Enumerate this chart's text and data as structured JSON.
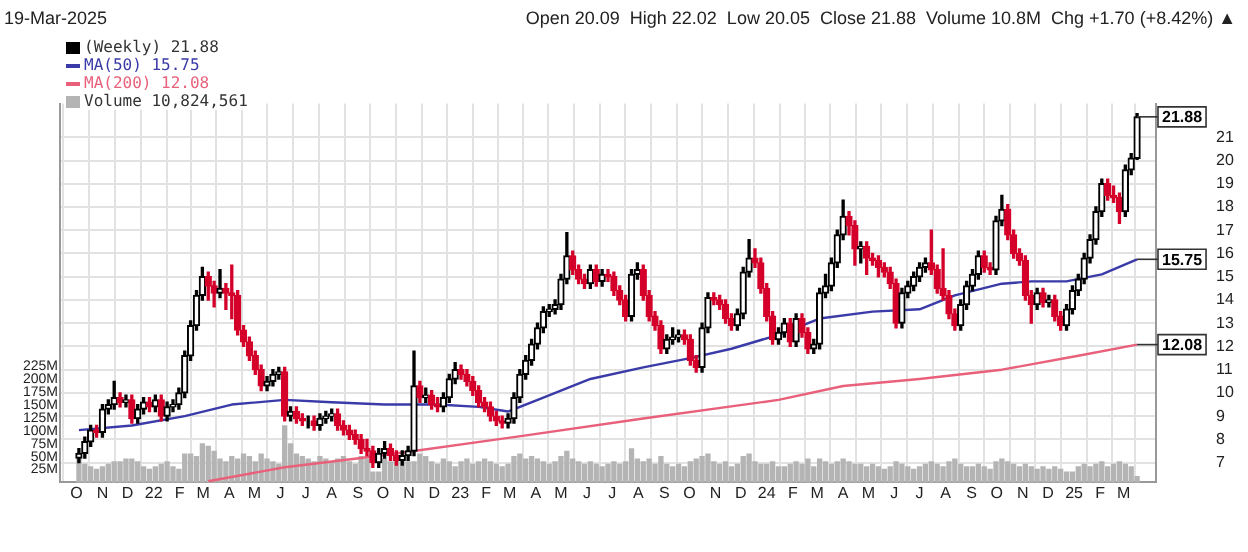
{
  "chart_data": {
    "type": "candlestick",
    "subtitle": "19-Mar-2025",
    "annotations": [
      "Open 20.09  High 22.02  Low 20.05  Close 21.88  Volume 10.8M  Chg +1.70 (+8.42%) ▲",
      {
        "text": "21.88",
        "x": "2025-03-17",
        "y": 21.88
      },
      {
        "text": "15.75",
        "x": "2025-03-17",
        "y": 15.75
      },
      {
        "text": "12.08",
        "x": "2025-03-17",
        "y": 12.08
      }
    ],
    "x": [
      "2021-10-04",
      "2021-10-11",
      "2021-10-18",
      "2021-10-25",
      "2021-11-01",
      "2021-11-08",
      "2021-11-15",
      "2021-11-22",
      "2021-11-29",
      "2021-12-06",
      "2021-12-13",
      "2021-12-20",
      "2021-12-27",
      "2022-01-03",
      "2022-01-10",
      "2022-01-17",
      "2022-01-24",
      "2022-01-31",
      "2022-02-07",
      "2022-02-14",
      "2022-02-21",
      "2022-02-28",
      "2022-03-07",
      "2022-03-14",
      "2022-03-21",
      "2022-03-28",
      "2022-04-04",
      "2022-04-11",
      "2022-04-18",
      "2022-04-25",
      "2022-05-02",
      "2022-05-09",
      "2022-05-16",
      "2022-05-23",
      "2022-05-30",
      "2022-06-06",
      "2022-06-13",
      "2022-06-20",
      "2022-06-27",
      "2022-07-04",
      "2022-07-11",
      "2022-07-18",
      "2022-07-25",
      "2022-08-01",
      "2022-08-08",
      "2022-08-15",
      "2022-08-22",
      "2022-08-29",
      "2022-09-05",
      "2022-09-12",
      "2022-09-19",
      "2022-09-26",
      "2022-10-03",
      "2022-10-10",
      "2022-10-17",
      "2022-10-24",
      "2022-10-31",
      "2022-11-07",
      "2022-11-14",
      "2022-11-21",
      "2022-11-28",
      "2022-12-05",
      "2022-12-12",
      "2022-12-19",
      "2022-12-26",
      "2023-01-02",
      "2023-01-09",
      "2023-01-16",
      "2023-01-23",
      "2023-01-30",
      "2023-02-06",
      "2023-02-13",
      "2023-02-20",
      "2023-02-27",
      "2023-03-06",
      "2023-03-13",
      "2023-03-20",
      "2023-03-27",
      "2023-04-03",
      "2023-04-10",
      "2023-04-17",
      "2023-04-24",
      "2023-05-01",
      "2023-05-08",
      "2023-05-15",
      "2023-05-22",
      "2023-05-29",
      "2023-06-05",
      "2023-06-12",
      "2023-06-19",
      "2023-06-26",
      "2023-07-03",
      "2023-07-10",
      "2023-07-17",
      "2023-07-24",
      "2023-07-31",
      "2023-08-07",
      "2023-08-14",
      "2023-08-21",
      "2023-08-28",
      "2023-09-04",
      "2023-09-11",
      "2023-09-18",
      "2023-09-25",
      "2023-10-02",
      "2023-10-09",
      "2023-10-16",
      "2023-10-23",
      "2023-10-30",
      "2023-11-06",
      "2023-11-13",
      "2023-11-20",
      "2023-11-27",
      "2023-12-04",
      "2023-12-11",
      "2023-12-18",
      "2023-12-25",
      "2024-01-01",
      "2024-01-08",
      "2024-01-15",
      "2024-01-22",
      "2024-01-29",
      "2024-02-05",
      "2024-02-12",
      "2024-02-19",
      "2024-02-26",
      "2024-03-04",
      "2024-03-11",
      "2024-03-18",
      "2024-03-25",
      "2024-04-01",
      "2024-04-08",
      "2024-04-15",
      "2024-04-22",
      "2024-04-29",
      "2024-05-06",
      "2024-05-13",
      "2024-05-20",
      "2024-05-27",
      "2024-06-03",
      "2024-06-10",
      "2024-06-17",
      "2024-06-24",
      "2024-07-01",
      "2024-07-08",
      "2024-07-15",
      "2024-07-22",
      "2024-07-29",
      "2024-08-05",
      "2024-08-12",
      "2024-08-19",
      "2024-08-26",
      "2024-09-02",
      "2024-09-09",
      "2024-09-16",
      "2024-09-23",
      "2024-09-30",
      "2024-10-07",
      "2024-10-14",
      "2024-10-21",
      "2024-10-28",
      "2024-11-04",
      "2024-11-11",
      "2024-11-18",
      "2024-11-25",
      "2024-12-02",
      "2024-12-09",
      "2024-12-16",
      "2024-12-23",
      "2024-12-30",
      "2025-01-06",
      "2025-01-13",
      "2025-01-20",
      "2025-01-27",
      "2025-02-03",
      "2025-02-10",
      "2025-02-17",
      "2025-02-24",
      "2025-03-03",
      "2025-03-10",
      "2025-03-17"
    ],
    "xlim": [
      "2021-09-27",
      "2025-03-24"
    ],
    "xticks": [
      {
        "value": "2021-10",
        "label": "O"
      },
      {
        "value": "2021-11",
        "label": "N"
      },
      {
        "value": "2021-12",
        "label": "D"
      },
      {
        "value": "2022-01",
        "label": "22"
      },
      {
        "value": "2022-02",
        "label": "F"
      },
      {
        "value": "2022-03",
        "label": "M"
      },
      {
        "value": "2022-04",
        "label": "A"
      },
      {
        "value": "2022-05",
        "label": "M"
      },
      {
        "value": "2022-06",
        "label": "J"
      },
      {
        "value": "2022-07",
        "label": "J"
      },
      {
        "value": "2022-08",
        "label": "A"
      },
      {
        "value": "2022-09",
        "label": "S"
      },
      {
        "value": "2022-10",
        "label": "O"
      },
      {
        "value": "2022-11",
        "label": "N"
      },
      {
        "value": "2022-12",
        "label": "D"
      },
      {
        "value": "2023-01",
        "label": "23"
      },
      {
        "value": "2023-02",
        "label": "F"
      },
      {
        "value": "2023-03",
        "label": "M"
      },
      {
        "value": "2023-04",
        "label": "A"
      },
      {
        "value": "2023-05",
        "label": "M"
      },
      {
        "value": "2023-06",
        "label": "J"
      },
      {
        "value": "2023-07",
        "label": "J"
      },
      {
        "value": "2023-08",
        "label": "A"
      },
      {
        "value": "2023-09",
        "label": "S"
      },
      {
        "value": "2023-10",
        "label": "O"
      },
      {
        "value": "2023-11",
        "label": "N"
      },
      {
        "value": "2023-12",
        "label": "D"
      },
      {
        "value": "2024-01",
        "label": "24"
      },
      {
        "value": "2024-02",
        "label": "F"
      },
      {
        "value": "2024-03",
        "label": "M"
      },
      {
        "value": "2024-04",
        "label": "A"
      },
      {
        "value": "2024-05",
        "label": "M"
      },
      {
        "value": "2024-06",
        "label": "J"
      },
      {
        "value": "2024-07",
        "label": "J"
      },
      {
        "value": "2024-08",
        "label": "A"
      },
      {
        "value": "2024-09",
        "label": "S"
      },
      {
        "value": "2024-10",
        "label": "O"
      },
      {
        "value": "2024-11",
        "label": "N"
      },
      {
        "value": "2024-12",
        "label": "D"
      },
      {
        "value": "2025-01",
        "label": "25"
      },
      {
        "value": "2025-02",
        "label": "F"
      },
      {
        "value": "2025-03",
        "label": "M"
      }
    ],
    "ylim": [
      6.15,
      22.45
    ],
    "yticks": [
      7,
      8,
      9,
      10,
      11,
      12,
      13,
      14,
      15,
      16,
      17,
      18,
      19,
      20,
      21
    ],
    "y2lim": [
      0,
      736
    ],
    "y2ticks": [
      {
        "value": 25,
        "label": "25M"
      },
      {
        "value": 50,
        "label": "50M"
      },
      {
        "value": 75,
        "label": "75M"
      },
      {
        "value": 100,
        "label": "100M"
      },
      {
        "value": 125,
        "label": "125M"
      },
      {
        "value": 150,
        "label": "150M"
      },
      {
        "value": 175,
        "label": "175M"
      },
      {
        "value": 200,
        "label": "200M"
      },
      {
        "value": 225,
        "label": "225M"
      }
    ],
    "grid": true,
    "legend": "top left",
    "marker": "none",
    "series": [
      {
        "name": "(Weekly) 21.88",
        "colors": [
          "#000000",
          "#000000",
          "#000000",
          "#d4002a",
          "#000000",
          "#000000",
          "#000000",
          "#d4002a",
          "#000000",
          "#d4002a",
          "#000000",
          "#000000",
          "#d4002a",
          "#000000",
          "#d4002a",
          "#000000",
          "#000000",
          "#000000",
          "#000000",
          "#000000",
          "#000000",
          "#000000",
          "#d4002a",
          "#d4002a",
          "#000000",
          "#d4002a",
          "#d4002a",
          "#d4002a",
          "#d4002a",
          "#d4002a",
          "#d4002a",
          "#d4002a",
          "#000000",
          "#000000",
          "#000000",
          "#d4002a",
          "#000000",
          "#d4002a",
          "#d4002a",
          "#000000",
          "#d4002a",
          "#000000",
          "#000000",
          "#000000",
          "#d4002a",
          "#d4002a",
          "#d4002a",
          "#d4002a",
          "#d4002a",
          "#d4002a",
          "#d4002a",
          "#000000",
          "#000000",
          "#d4002a",
          "#d4002a",
          "#000000",
          "#000000",
          "#000000",
          "#d4002a",
          "#000000",
          "#d4002a",
          "#d4002a",
          "#000000",
          "#000000",
          "#000000",
          "#d4002a",
          "#d4002a",
          "#d4002a",
          "#d4002a",
          "#d4002a",
          "#d4002a",
          "#d4002a",
          "#d4002a",
          "#000000",
          "#000000",
          "#000000",
          "#000000",
          "#000000",
          "#000000",
          "#000000",
          "#000000",
          "#000000",
          "#000000",
          "#000000",
          "#d4002a",
          "#d4002a",
          "#d4002a",
          "#000000",
          "#d4002a",
          "#000000",
          "#d4002a",
          "#d4002a",
          "#d4002a",
          "#d4002a",
          "#000000",
          "#000000",
          "#d4002a",
          "#d4002a",
          "#d4002a",
          "#d4002a",
          "#000000",
          "#000000",
          "#000000",
          "#d4002a",
          "#d4002a",
          "#d4002a",
          "#000000",
          "#000000",
          "#d4002a",
          "#d4002a",
          "#d4002a",
          "#d4002a",
          "#000000",
          "#000000",
          "#000000",
          "#d4002a",
          "#d4002a",
          "#d4002a",
          "#d4002a",
          "#000000",
          "#000000",
          "#d4002a",
          "#000000",
          "#d4002a",
          "#d4002a",
          "#000000",
          "#000000",
          "#000000",
          "#000000",
          "#000000",
          "#000000",
          "#d4002a",
          "#d4002a",
          "#000000",
          "#d4002a",
          "#d4002a",
          "#d4002a",
          "#d4002a",
          "#d4002a",
          "#d4002a",
          "#000000",
          "#000000",
          "#000000",
          "#000000",
          "#000000",
          "#d4002a",
          "#d4002a",
          "#d4002a",
          "#d4002a",
          "#d4002a",
          "#000000",
          "#000000",
          "#000000",
          "#000000",
          "#d4002a",
          "#d4002a",
          "#000000",
          "#000000",
          "#d4002a",
          "#d4002a",
          "#d4002a",
          "#d4002a",
          "#d4002a",
          "#000000",
          "#d4002a",
          "#000000",
          "#d4002a",
          "#d4002a",
          "#000000",
          "#000000",
          "#000000",
          "#000000",
          "#000000",
          "#000000",
          "#000000",
          "#d4002a",
          "#d4002a",
          "#d4002a",
          "#000000",
          "#000000",
          "#000000"
        ],
        "ohlc": [
          [
            7.2,
            7.6,
            7.0,
            7.4
          ],
          [
            7.4,
            8.1,
            7.2,
            7.9
          ],
          [
            7.9,
            8.6,
            7.7,
            8.4
          ],
          [
            8.4,
            8.6,
            8.1,
            8.3
          ],
          [
            8.3,
            9.5,
            8.1,
            9.3
          ],
          [
            9.3,
            9.7,
            9.1,
            9.5
          ],
          [
            9.5,
            10.5,
            9.3,
            9.8
          ],
          [
            9.8,
            10.0,
            9.4,
            9.6
          ],
          [
            9.6,
            9.9,
            9.4,
            9.7
          ],
          [
            9.7,
            9.9,
            8.7,
            8.9
          ],
          [
            8.9,
            9.5,
            8.7,
            9.3
          ],
          [
            9.3,
            9.8,
            9.1,
            9.6
          ],
          [
            9.6,
            9.8,
            9.2,
            9.4
          ],
          [
            9.4,
            9.9,
            9.2,
            9.7
          ],
          [
            9.7,
            9.9,
            8.8,
            9.0
          ],
          [
            9.0,
            9.6,
            8.8,
            9.4
          ],
          [
            9.4,
            9.7,
            9.2,
            9.5
          ],
          [
            9.5,
            10.2,
            9.3,
            10.0
          ],
          [
            10.0,
            11.8,
            9.8,
            11.6
          ],
          [
            11.6,
            13.1,
            11.4,
            12.9
          ],
          [
            12.9,
            14.4,
            12.7,
            14.2
          ],
          [
            14.2,
            15.4,
            14.0,
            15.0
          ],
          [
            15.0,
            15.2,
            14.0,
            14.6
          ],
          [
            14.6,
            14.8,
            13.7,
            14.3
          ],
          [
            14.3,
            15.3,
            14.1,
            14.5
          ],
          [
            14.5,
            14.7,
            13.6,
            14.3
          ],
          [
            14.3,
            15.5,
            13.2,
            14.2
          ],
          [
            14.2,
            14.4,
            12.5,
            12.7
          ],
          [
            12.7,
            12.9,
            12.0,
            12.2
          ],
          [
            12.2,
            12.4,
            11.4,
            11.6
          ],
          [
            11.6,
            11.8,
            10.8,
            11.0
          ],
          [
            11.0,
            11.2,
            10.1,
            10.3
          ],
          [
            10.3,
            10.7,
            10.1,
            10.5
          ],
          [
            10.5,
            11.0,
            10.3,
            10.8
          ],
          [
            10.8,
            11.1,
            10.6,
            10.9
          ],
          [
            10.9,
            11.1,
            8.8,
            9.0
          ],
          [
            9.0,
            9.4,
            8.8,
            9.2
          ],
          [
            9.2,
            9.4,
            8.7,
            8.9
          ],
          [
            8.9,
            9.1,
            8.6,
            8.8
          ],
          [
            8.8,
            9.0,
            8.5,
            8.8
          ],
          [
            8.8,
            9.0,
            8.4,
            8.6
          ],
          [
            8.6,
            9.1,
            8.4,
            8.9
          ],
          [
            8.9,
            9.2,
            8.7,
            9.0
          ],
          [
            9.0,
            9.3,
            8.8,
            9.1
          ],
          [
            9.1,
            9.3,
            8.4,
            8.6
          ],
          [
            8.6,
            8.8,
            8.2,
            8.4
          ],
          [
            8.4,
            8.6,
            8.0,
            8.2
          ],
          [
            8.2,
            8.4,
            7.8,
            8.0
          ],
          [
            8.0,
            8.2,
            7.4,
            7.6
          ],
          [
            7.6,
            8.0,
            7.3,
            7.5
          ],
          [
            7.5,
            7.7,
            6.8,
            7.0
          ],
          [
            7.0,
            7.6,
            6.8,
            7.4
          ],
          [
            7.4,
            7.9,
            7.2,
            7.6
          ],
          [
            7.6,
            7.8,
            7.1,
            7.3
          ],
          [
            7.3,
            7.5,
            6.9,
            7.1
          ],
          [
            7.1,
            7.5,
            6.9,
            7.3
          ],
          [
            7.3,
            7.7,
            7.1,
            7.5
          ],
          [
            7.5,
            11.8,
            7.3,
            10.3
          ],
          [
            10.3,
            10.5,
            9.6,
            9.8
          ],
          [
            9.8,
            10.2,
            9.6,
            9.9
          ],
          [
            9.9,
            10.1,
            9.3,
            9.5
          ],
          [
            9.5,
            9.8,
            9.2,
            9.4
          ],
          [
            9.4,
            10.0,
            9.2,
            9.8
          ],
          [
            9.8,
            10.8,
            9.6,
            10.6
          ],
          [
            10.6,
            11.3,
            10.4,
            11.0
          ],
          [
            11.0,
            11.2,
            10.6,
            10.8
          ],
          [
            10.8,
            11.0,
            10.3,
            10.5
          ],
          [
            10.5,
            10.7,
            9.9,
            10.1
          ],
          [
            10.1,
            10.3,
            9.4,
            9.6
          ],
          [
            9.6,
            9.8,
            9.2,
            9.4
          ],
          [
            9.4,
            9.6,
            8.8,
            9.0
          ],
          [
            9.0,
            9.2,
            8.6,
            8.8
          ],
          [
            8.8,
            9.0,
            8.5,
            8.7
          ],
          [
            8.7,
            9.1,
            8.5,
            8.9
          ],
          [
            8.9,
            10.0,
            8.7,
            9.8
          ],
          [
            9.8,
            11.0,
            9.6,
            10.8
          ],
          [
            10.8,
            11.6,
            10.6,
            11.4
          ],
          [
            11.4,
            12.3,
            11.2,
            12.1
          ],
          [
            12.1,
            13.0,
            11.9,
            12.8
          ],
          [
            12.8,
            13.7,
            12.6,
            13.5
          ],
          [
            13.5,
            13.8,
            13.3,
            13.6
          ],
          [
            13.6,
            14.0,
            13.4,
            13.8
          ],
          [
            13.8,
            15.1,
            13.6,
            14.9
          ],
          [
            14.9,
            16.9,
            14.7,
            15.9
          ],
          [
            15.9,
            16.1,
            15.1,
            15.3
          ],
          [
            15.3,
            15.5,
            14.7,
            14.9
          ],
          [
            14.9,
            15.1,
            14.5,
            14.7
          ],
          [
            14.7,
            15.5,
            14.5,
            15.3
          ],
          [
            15.3,
            15.5,
            14.6,
            14.8
          ],
          [
            14.8,
            15.3,
            14.6,
            15.1
          ],
          [
            15.1,
            15.3,
            14.8,
            15.0
          ],
          [
            15.0,
            15.2,
            14.2,
            14.4
          ],
          [
            14.4,
            14.6,
            13.8,
            14.0
          ],
          [
            14.0,
            14.2,
            13.1,
            13.3
          ],
          [
            13.3,
            15.3,
            13.1,
            15.1
          ],
          [
            15.1,
            15.6,
            14.9,
            15.3
          ],
          [
            15.3,
            15.5,
            14.0,
            14.2
          ],
          [
            14.2,
            14.4,
            13.1,
            13.3
          ],
          [
            13.3,
            13.5,
            12.7,
            12.9
          ],
          [
            12.9,
            13.1,
            11.7,
            11.9
          ],
          [
            11.9,
            12.5,
            11.7,
            12.3
          ],
          [
            12.3,
            12.8,
            12.1,
            12.4
          ],
          [
            12.4,
            12.7,
            12.2,
            12.5
          ],
          [
            12.5,
            12.7,
            12.1,
            12.3
          ],
          [
            12.3,
            12.5,
            11.2,
            11.4
          ],
          [
            11.4,
            11.6,
            10.9,
            11.1
          ],
          [
            11.1,
            13.0,
            10.9,
            12.8
          ],
          [
            12.8,
            14.3,
            12.6,
            14.1
          ],
          [
            14.1,
            14.3,
            13.8,
            14.0
          ],
          [
            14.0,
            14.2,
            13.6,
            13.8
          ],
          [
            13.8,
            14.0,
            13.0,
            13.2
          ],
          [
            13.2,
            13.4,
            12.7,
            12.9
          ],
          [
            12.9,
            13.6,
            12.7,
            13.4
          ],
          [
            13.4,
            15.4,
            13.2,
            15.2
          ],
          [
            15.2,
            16.6,
            15.0,
            15.8
          ],
          [
            15.8,
            16.2,
            15.4,
            15.6
          ],
          [
            15.6,
            15.8,
            14.3,
            14.5
          ],
          [
            14.5,
            14.7,
            13.1,
            13.3
          ],
          [
            13.3,
            13.5,
            12.1,
            12.3
          ],
          [
            12.3,
            12.8,
            12.1,
            12.6
          ],
          [
            12.6,
            13.2,
            12.4,
            13.0
          ],
          [
            13.0,
            13.2,
            12.0,
            12.2
          ],
          [
            12.2,
            13.4,
            12.0,
            13.2
          ],
          [
            13.2,
            13.4,
            12.4,
            12.6
          ],
          [
            12.6,
            12.8,
            11.7,
            11.9
          ],
          [
            11.9,
            12.3,
            11.7,
            12.1
          ],
          [
            12.1,
            14.5,
            11.9,
            14.3
          ],
          [
            14.3,
            15.1,
            14.1,
            14.6
          ],
          [
            14.6,
            15.8,
            14.4,
            15.6
          ],
          [
            15.6,
            17.0,
            15.4,
            16.8
          ],
          [
            16.8,
            18.3,
            16.6,
            17.6
          ],
          [
            17.6,
            17.8,
            16.8,
            17.2
          ],
          [
            17.2,
            17.4,
            15.5,
            16.2
          ],
          [
            16.2,
            16.5,
            15.6,
            16.3
          ],
          [
            16.3,
            16.5,
            15.1,
            15.8
          ],
          [
            15.8,
            16.0,
            15.5,
            15.7
          ],
          [
            15.7,
            15.9,
            15.0,
            15.4
          ],
          [
            15.4,
            15.6,
            15.0,
            15.2
          ],
          [
            15.2,
            15.4,
            14.5,
            14.7
          ],
          [
            14.7,
            14.9,
            12.8,
            13.0
          ],
          [
            13.0,
            14.5,
            12.8,
            14.3
          ],
          [
            14.3,
            14.8,
            14.1,
            14.6
          ],
          [
            14.6,
            15.2,
            14.4,
            15.0
          ],
          [
            15.0,
            15.6,
            14.8,
            15.4
          ],
          [
            15.4,
            15.8,
            15.2,
            15.6
          ],
          [
            15.6,
            17.0,
            15.1,
            15.3
          ],
          [
            15.3,
            15.5,
            14.3,
            14.5
          ],
          [
            14.5,
            16.2,
            14.0,
            14.2
          ],
          [
            14.2,
            14.4,
            13.2,
            13.4
          ],
          [
            13.4,
            13.6,
            12.7,
            12.9
          ],
          [
            12.9,
            14.0,
            12.7,
            13.8
          ],
          [
            13.8,
            14.8,
            13.6,
            14.6
          ],
          [
            14.6,
            15.3,
            14.4,
            15.1
          ],
          [
            15.1,
            16.1,
            14.9,
            15.9
          ],
          [
            15.9,
            16.1,
            15.2,
            15.4
          ],
          [
            15.4,
            15.6,
            15.1,
            15.3
          ],
          [
            15.3,
            17.6,
            15.1,
            17.4
          ],
          [
            17.4,
            18.5,
            17.2,
            17.9
          ],
          [
            17.9,
            18.1,
            16.6,
            16.8
          ],
          [
            16.8,
            17.0,
            15.8,
            16.0
          ],
          [
            16.0,
            16.2,
            15.5,
            15.7
          ],
          [
            15.7,
            15.9,
            14.0,
            14.2
          ],
          [
            14.2,
            14.4,
            13.0,
            13.8
          ],
          [
            13.8,
            14.5,
            13.6,
            14.3
          ],
          [
            14.3,
            14.5,
            13.7,
            13.9
          ],
          [
            13.9,
            14.2,
            13.7,
            14.0
          ],
          [
            14.0,
            14.2,
            13.1,
            13.3
          ],
          [
            13.3,
            13.5,
            12.7,
            12.9
          ],
          [
            12.9,
            13.8,
            12.7,
            13.6
          ],
          [
            13.6,
            14.6,
            13.4,
            14.4
          ],
          [
            14.4,
            15.1,
            14.2,
            14.9
          ],
          [
            14.9,
            16.0,
            14.7,
            15.8
          ],
          [
            15.8,
            16.8,
            15.6,
            16.6
          ],
          [
            16.6,
            18.0,
            16.4,
            17.8
          ],
          [
            17.8,
            19.2,
            17.6,
            19.0
          ],
          [
            19.0,
            19.2,
            18.3,
            18.5
          ],
          [
            18.5,
            18.9,
            18.2,
            18.4
          ],
          [
            18.4,
            18.6,
            17.3,
            17.8
          ],
          [
            17.8,
            19.8,
            17.6,
            19.6
          ],
          [
            19.6,
            20.3,
            19.4,
            20.1
          ],
          [
            20.09,
            22.02,
            20.05,
            21.88
          ]
        ]
      },
      {
        "name": "MA(50) 15.75",
        "type": "line",
        "color": "#3a3aa8",
        "x": [
          "2021-10-04",
          "2021-12-06",
          "2022-02-07",
          "2022-04-04",
          "2022-06-06",
          "2022-08-01",
          "2022-10-03",
          "2022-12-05",
          "2023-01-23",
          "2023-02-27",
          "2023-04-10",
          "2023-06-05",
          "2023-08-07",
          "2023-10-02",
          "2023-11-20",
          "2024-01-15",
          "2024-03-04",
          "2024-05-06",
          "2024-07-01",
          "2024-08-12",
          "2024-10-07",
          "2024-11-11",
          "2024-12-23",
          "2025-02-03",
          "2025-03-17"
        ],
        "values": [
          8.4,
          8.6,
          9.0,
          9.5,
          9.7,
          9.6,
          9.5,
          9.5,
          9.4,
          9.2,
          9.8,
          10.6,
          11.1,
          11.5,
          11.9,
          12.5,
          13.2,
          13.5,
          13.6,
          14.2,
          14.7,
          14.8,
          14.8,
          15.1,
          15.75
        ]
      },
      {
        "name": "MA(200) 12.08",
        "type": "line",
        "color": "#e8607a",
        "x": [
          "2022-03-07",
          "2022-06-06",
          "2022-09-05",
          "2022-11-07",
          "2023-03-06",
          "2023-08-07",
          "2024-01-15",
          "2024-04-01",
          "2024-07-01",
          "2024-10-07",
          "2025-01-06",
          "2025-03-17"
        ],
        "values": [
          6.2,
          6.8,
          7.2,
          7.5,
          8.1,
          8.9,
          9.7,
          10.3,
          10.6,
          11.0,
          11.6,
          12.08
        ]
      },
      {
        "name": "Volume 10,824,561",
        "type": "bar",
        "axis": "y2",
        "color": "#b4b4b4",
        "values": [
          45,
          35,
          30,
          25,
          30,
          35,
          40,
          40,
          45,
          45,
          40,
          30,
          25,
          30,
          35,
          40,
          30,
          25,
          55,
          55,
          50,
          75,
          70,
          60,
          45,
          40,
          50,
          45,
          55,
          50,
          40,
          55,
          45,
          40,
          35,
          110,
          75,
          55,
          50,
          45,
          40,
          50,
          45,
          40,
          45,
          50,
          40,
          35,
          50,
          45,
          20,
          20,
          45,
          40,
          50,
          45,
          40,
          40,
          55,
          50,
          40,
          35,
          45,
          40,
          30,
          40,
          45,
          35,
          40,
          45,
          40,
          35,
          30,
          35,
          50,
          55,
          45,
          50,
          45,
          40,
          35,
          40,
          50,
          60,
          45,
          40,
          35,
          40,
          35,
          30,
          35,
          40,
          35,
          40,
          65,
          45,
          40,
          45,
          35,
          50,
          35,
          30,
          35,
          30,
          40,
          45,
          50,
          55,
          40,
          35,
          40,
          30,
          35,
          50,
          55,
          40,
          35,
          35,
          40,
          30,
          30,
          35,
          40,
          35,
          45,
          30,
          45,
          40,
          35,
          40,
          45,
          40,
          35,
          35,
          30,
          35,
          30,
          25,
          30,
          40,
          35,
          30,
          25,
          30,
          35,
          40,
          35,
          30,
          40,
          45,
          35,
          30,
          30,
          35,
          30,
          25,
          40,
          45,
          40,
          35,
          30,
          35,
          30,
          25,
          30,
          25,
          30,
          25,
          20,
          20,
          30,
          35,
          30,
          35,
          40,
          30,
          35,
          40,
          35,
          30,
          11
        ]
      }
    ]
  }
}
